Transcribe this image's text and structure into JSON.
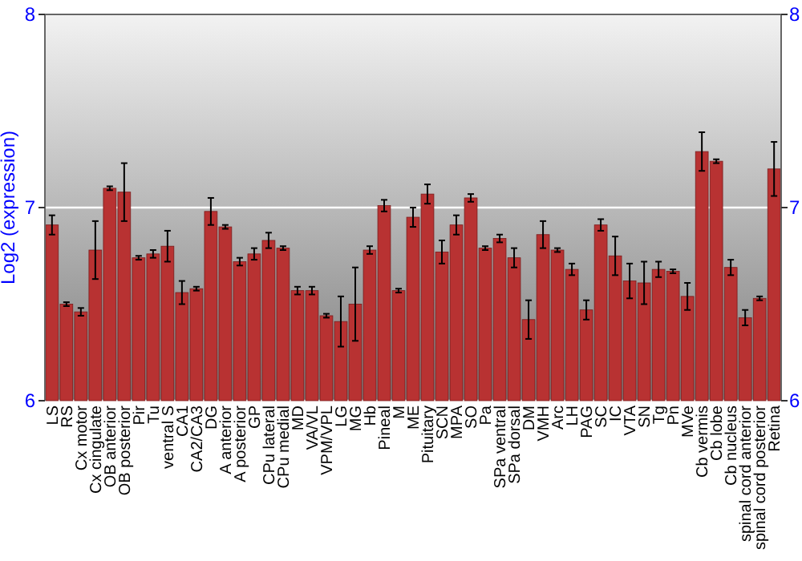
{
  "chart_data": {
    "type": "bar",
    "ylabel": "Log2 (expression)",
    "categories": [
      "LS",
      "RS",
      "Cx motor",
      "Cx cingulate",
      "OB anterior",
      "OB posterior",
      "Pir",
      "Tu",
      "ventral S",
      "CA1",
      "CA2/CA3",
      "DG",
      "A anterior",
      "A posterior",
      "GP",
      "CPu lateral",
      "CPu medial",
      "MD",
      "VA/VL",
      "VPM/VPL",
      "LG",
      "MG",
      "Hb",
      "Pineal",
      "M",
      "ME",
      "Pituitary",
      "SCN",
      "MPA",
      "SO",
      "Pa",
      "SPa ventral",
      "SPa dorsal",
      "DM",
      "VMH",
      "Arc",
      "LH",
      "PAG",
      "SC",
      "IC",
      "VTA",
      "SN",
      "Tg",
      "Pn",
      "MVe",
      "Cb vermis",
      "Cb lobe",
      "Cb nucleus",
      "spinal cord anterior",
      "spinal cord posterior",
      "Retina"
    ],
    "values": [
      6.91,
      6.5,
      6.46,
      6.78,
      7.1,
      7.08,
      6.74,
      6.76,
      6.8,
      6.56,
      6.58,
      6.98,
      6.9,
      6.72,
      6.76,
      6.83,
      6.79,
      6.57,
      6.57,
      6.44,
      6.41,
      6.5,
      6.78,
      7.01,
      6.57,
      6.95,
      7.07,
      6.77,
      6.91,
      7.05,
      6.79,
      6.84,
      6.74,
      6.42,
      6.86,
      6.78,
      6.68,
      6.47,
      6.91,
      6.75,
      6.62,
      6.61,
      6.68,
      6.67,
      6.54,
      7.29,
      7.24,
      6.69,
      6.43,
      6.53,
      7.2
    ],
    "errors": [
      0.05,
      0.01,
      0.02,
      0.15,
      0.01,
      0.15,
      0.01,
      0.02,
      0.08,
      0.06,
      0.01,
      0.07,
      0.01,
      0.02,
      0.03,
      0.04,
      0.01,
      0.02,
      0.02,
      0.01,
      0.13,
      0.19,
      0.02,
      0.03,
      0.01,
      0.05,
      0.05,
      0.06,
      0.05,
      0.02,
      0.01,
      0.02,
      0.05,
      0.1,
      0.07,
      0.01,
      0.03,
      0.05,
      0.03,
      0.1,
      0.09,
      0.11,
      0.04,
      0.01,
      0.07,
      0.1,
      0.01,
      0.04,
      0.04,
      0.01,
      0.14
    ],
    "color": "#b83232",
    "ylim": [
      6,
      8
    ],
    "yticks": [
      6,
      7,
      8
    ],
    "y2lim": [
      6,
      8
    ],
    "y2ticks": [
      6,
      7,
      8
    ],
    "grid": "y"
  }
}
